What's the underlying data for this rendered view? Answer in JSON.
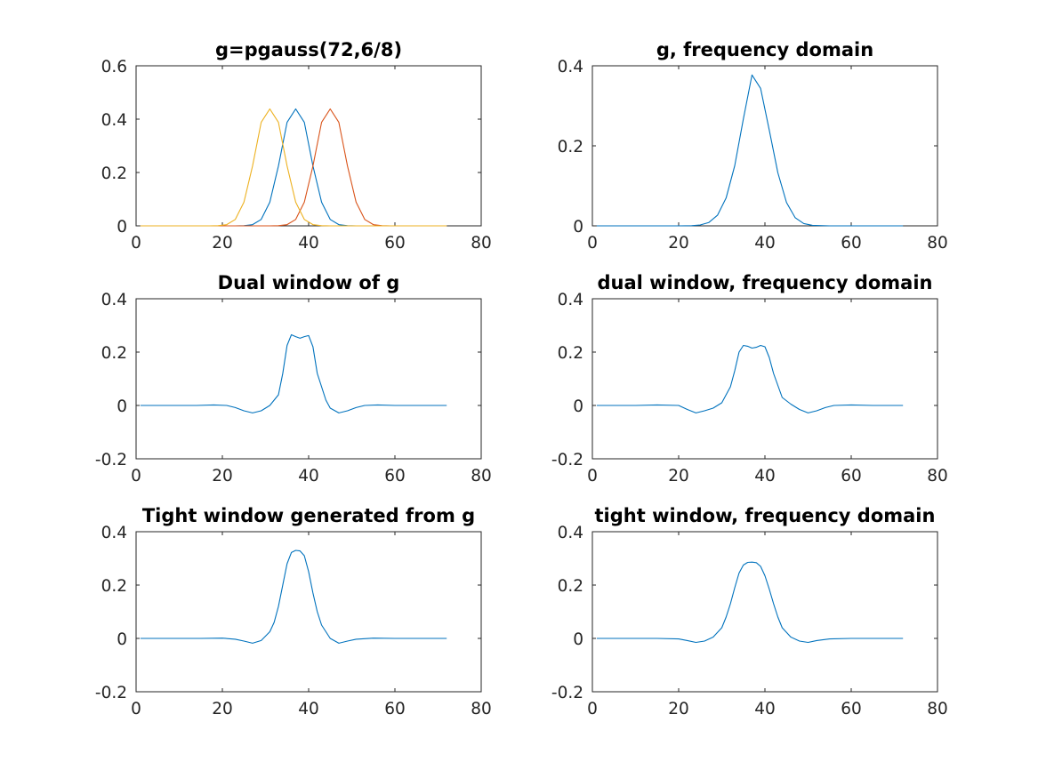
{
  "chart_data": [
    {
      "type": "line",
      "title": "g=pgauss(72,6/8)",
      "xlim": [
        0,
        80
      ],
      "ylim": [
        0,
        0.6
      ],
      "xticks": [
        0,
        20,
        40,
        60,
        80
      ],
      "xtick_labels": [
        "0",
        "20",
        "40",
        "60",
        "80"
      ],
      "yticks": [
        0,
        0.2,
        0.4,
        0.6
      ],
      "ytick_labels": [
        "0",
        "0.2",
        "0.4",
        "0.6"
      ],
      "grid": false,
      "series": [
        {
          "color": "#0072bd",
          "x": [
            1,
            3,
            5,
            7,
            9,
            11,
            13,
            15,
            17,
            19,
            21,
            23,
            25,
            27,
            29,
            31,
            33,
            35,
            37,
            39,
            41,
            43,
            45,
            47,
            49,
            51,
            53,
            55,
            57,
            59,
            61,
            63,
            65,
            67,
            69,
            71,
            72
          ],
          "y": [
            0,
            0,
            0,
            0,
            0,
            0,
            0,
            0,
            0,
            0,
            0,
            0,
            0.0006,
            0.0045,
            0.024,
            0.0888,
            0.2246,
            0.3881,
            0.4383,
            0.3881,
            0.2246,
            0.0888,
            0.024,
            0.0045,
            0.0006,
            0,
            0,
            0,
            0,
            0,
            0,
            0,
            0,
            0,
            0,
            0,
            0
          ]
        },
        {
          "color": "#d95319",
          "x": [
            1,
            3,
            5,
            7,
            9,
            11,
            13,
            15,
            17,
            19,
            21,
            23,
            25,
            27,
            29,
            31,
            33,
            35,
            37,
            39,
            41,
            43,
            45,
            47,
            49,
            51,
            53,
            55,
            57,
            59,
            61,
            63,
            65,
            67,
            69,
            71,
            72
          ],
          "y": [
            0,
            0,
            0,
            0,
            0,
            0,
            0,
            0,
            0,
            0,
            0,
            0,
            0,
            0,
            0,
            0,
            0.0006,
            0.0045,
            0.024,
            0.0888,
            0.2246,
            0.3881,
            0.4383,
            0.3881,
            0.2246,
            0.0888,
            0.024,
            0.0045,
            0.0006,
            0,
            0,
            0,
            0,
            0,
            0,
            0,
            0
          ]
        },
        {
          "color": "#edb120",
          "x": [
            1,
            3,
            5,
            7,
            9,
            11,
            13,
            15,
            17,
            19,
            21,
            23,
            25,
            27,
            29,
            31,
            33,
            35,
            37,
            39,
            41,
            43,
            45,
            47,
            49,
            51,
            53,
            55,
            57,
            59,
            61,
            63,
            65,
            67,
            69,
            71,
            72
          ],
          "y": [
            0,
            0,
            0,
            0,
            0,
            0,
            0,
            0,
            0,
            0.0006,
            0.0045,
            0.024,
            0.0888,
            0.2246,
            0.3881,
            0.4383,
            0.3881,
            0.2246,
            0.0888,
            0.024,
            0.0045,
            0.0006,
            0,
            0,
            0,
            0,
            0,
            0,
            0,
            0,
            0,
            0,
            0,
            0,
            0,
            0,
            0
          ]
        }
      ]
    },
    {
      "type": "line",
      "title": "g, frequency domain",
      "xlim": [
        0,
        80
      ],
      "ylim": [
        0,
        0.4
      ],
      "xticks": [
        0,
        20,
        40,
        60,
        80
      ],
      "xtick_labels": [
        "0",
        "20",
        "40",
        "60",
        "80"
      ],
      "yticks": [
        0,
        0.2,
        0.4
      ],
      "ytick_labels": [
        "0",
        "0.2",
        "0.4"
      ],
      "grid": false,
      "series": [
        {
          "color": "#0072bd",
          "x": [
            1,
            5,
            10,
            15,
            20,
            23,
            25,
            27,
            29,
            31,
            33,
            35,
            37,
            39,
            41,
            43,
            45,
            47,
            49,
            51,
            55,
            60,
            65,
            72
          ],
          "y": [
            0,
            0,
            0,
            0,
            0,
            0.0005,
            0.0022,
            0.0084,
            0.0265,
            0.0696,
            0.1504,
            0.2672,
            0.3771,
            0.3434,
            0.2395,
            0.1325,
            0.0584,
            0.0205,
            0.0057,
            0.0013,
            0,
            0,
            0,
            0
          ]
        }
      ]
    },
    {
      "type": "line",
      "title": "Dual window of g",
      "xlim": [
        0,
        80
      ],
      "ylim": [
        -0.2,
        0.4
      ],
      "xticks": [
        0,
        20,
        40,
        60,
        80
      ],
      "xtick_labels": [
        "0",
        "20",
        "40",
        "60",
        "80"
      ],
      "yticks": [
        -0.2,
        0,
        0.2,
        0.4
      ],
      "ytick_labels": [
        "-0.2",
        "0",
        "0.2",
        "0.4"
      ],
      "grid": false,
      "series": [
        {
          "color": "#0072bd",
          "x": [
            1,
            5,
            10,
            14,
            18,
            21,
            23,
            25,
            27,
            29,
            31,
            33,
            34,
            35,
            36,
            37,
            38,
            39,
            40,
            41,
            42,
            44,
            45,
            47,
            49,
            51,
            53,
            56,
            60,
            65,
            72
          ],
          "y": [
            0,
            0,
            0,
            0,
            0.002,
            0,
            -0.008,
            -0.02,
            -0.028,
            -0.02,
            0,
            0.04,
            0.12,
            0.225,
            0.265,
            0.258,
            0.252,
            0.258,
            0.262,
            0.22,
            0.12,
            0.02,
            -0.01,
            -0.028,
            -0.02,
            -0.008,
            0,
            0.002,
            0,
            0,
            0
          ]
        }
      ]
    },
    {
      "type": "line",
      "title": "dual window, frequency domain",
      "xlim": [
        0,
        80
      ],
      "ylim": [
        -0.2,
        0.4
      ],
      "xticks": [
        0,
        20,
        40,
        60,
        80
      ],
      "xtick_labels": [
        "0",
        "20",
        "40",
        "60",
        "80"
      ],
      "yticks": [
        -0.2,
        0,
        0.2,
        0.4
      ],
      "ytick_labels": [
        "-0.2",
        "0",
        "0.2",
        "0.4"
      ],
      "grid": false,
      "series": [
        {
          "color": "#0072bd",
          "x": [
            1,
            5,
            10,
            15,
            20,
            22,
            24,
            26,
            28,
            30,
            32,
            33,
            34,
            35,
            36,
            37,
            38,
            39,
            40,
            41,
            42,
            44,
            46,
            48,
            50,
            52,
            54,
            56,
            60,
            65,
            72
          ],
          "y": [
            0,
            0,
            0,
            0.002,
            0,
            -0.015,
            -0.028,
            -0.02,
            -0.01,
            0.01,
            0.07,
            0.13,
            0.2,
            0.225,
            0.222,
            0.215,
            0.218,
            0.225,
            0.22,
            0.18,
            0.12,
            0.03,
            0.005,
            -0.015,
            -0.028,
            -0.02,
            -0.008,
            0,
            0.002,
            0,
            0
          ]
        }
      ]
    },
    {
      "type": "line",
      "title": "Tight window generated from g",
      "xlim": [
        0,
        80
      ],
      "ylim": [
        -0.2,
        0.4
      ],
      "xticks": [
        0,
        20,
        40,
        60,
        80
      ],
      "xtick_labels": [
        "0",
        "20",
        "40",
        "60",
        "80"
      ],
      "yticks": [
        -0.2,
        0,
        0.2,
        0.4
      ],
      "ytick_labels": [
        "-0.2",
        "0",
        "0.2",
        "0.4"
      ],
      "grid": false,
      "series": [
        {
          "color": "#0072bd",
          "x": [
            1,
            5,
            10,
            15,
            20,
            23,
            25,
            27,
            29,
            31,
            32,
            33,
            34,
            35,
            36,
            37,
            38,
            39,
            40,
            41,
            42,
            43,
            45,
            47,
            49,
            51,
            55,
            60,
            65,
            72
          ],
          "y": [
            0,
            0,
            0,
            0,
            0.001,
            -0.003,
            -0.01,
            -0.018,
            -0.008,
            0.025,
            0.06,
            0.12,
            0.2,
            0.28,
            0.322,
            0.33,
            0.328,
            0.31,
            0.25,
            0.17,
            0.1,
            0.05,
            0,
            -0.018,
            -0.01,
            -0.003,
            0.001,
            0,
            0,
            0
          ]
        }
      ]
    },
    {
      "type": "line",
      "title": "tight window, frequency domain",
      "xlim": [
        0,
        80
      ],
      "ylim": [
        -0.2,
        0.4
      ],
      "xticks": [
        0,
        20,
        40,
        60,
        80
      ],
      "xtick_labels": [
        "0",
        "20",
        "40",
        "60",
        "80"
      ],
      "yticks": [
        -0.2,
        0,
        0.2,
        0.4
      ],
      "ytick_labels": [
        "-0.2",
        "0",
        "0.2",
        "0.4"
      ],
      "grid": false,
      "series": [
        {
          "color": "#0072bd",
          "x": [
            1,
            5,
            10,
            15,
            20,
            22,
            24,
            26,
            28,
            30,
            31,
            32,
            33,
            34,
            35,
            36,
            37,
            38,
            39,
            40,
            41,
            42,
            43,
            44,
            46,
            48,
            50,
            52,
            55,
            60,
            65,
            72
          ],
          "y": [
            0,
            0,
            0,
            0,
            -0.002,
            -0.008,
            -0.015,
            -0.01,
            0.005,
            0.04,
            0.08,
            0.13,
            0.19,
            0.245,
            0.275,
            0.285,
            0.286,
            0.284,
            0.27,
            0.235,
            0.185,
            0.13,
            0.08,
            0.04,
            0.005,
            -0.01,
            -0.015,
            -0.008,
            -0.002,
            0,
            0,
            0
          ]
        }
      ]
    }
  ]
}
